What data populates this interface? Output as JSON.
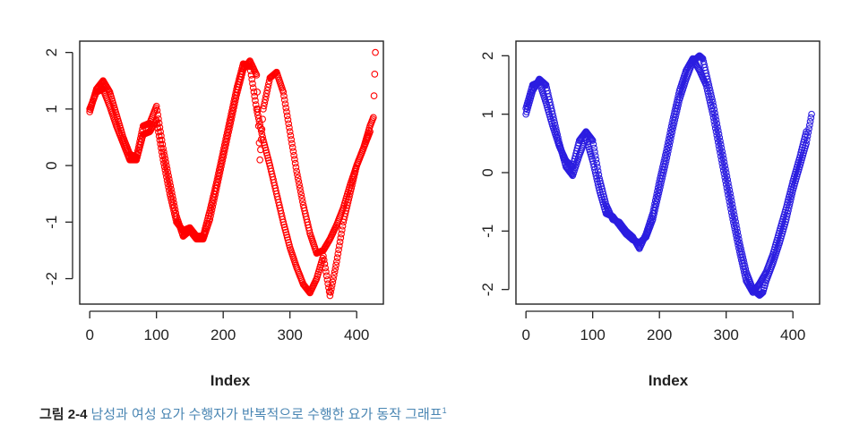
{
  "caption": {
    "label": "그림 2-4",
    "text": "남성과 여성 요가 수행자가 반복적으로 수행한 요가 동작 그래프",
    "footnote": "1"
  },
  "chart_data": [
    {
      "type": "scatter",
      "xlabel": "Index",
      "ylabel": "",
      "xlim": [
        -15,
        440
      ],
      "ylim": [
        -2.45,
        2.2
      ],
      "xticks": [
        0,
        100,
        200,
        300,
        400
      ],
      "yticks": [
        -2,
        -1,
        0,
        1,
        2
      ],
      "marker": "open-circle",
      "color": "#ff0000",
      "series": [
        {
          "x": [
            0,
            10,
            20,
            30,
            40,
            50,
            60,
            70,
            80,
            90,
            100,
            110,
            120,
            130,
            140,
            150,
            160,
            170,
            180,
            190,
            200,
            210,
            220,
            230,
            240,
            250,
            255,
            260,
            270,
            280,
            290,
            300,
            310,
            320,
            330,
            340,
            350,
            360,
            370,
            380,
            390,
            400,
            410,
            420,
            425,
            428
          ],
          "y": [
            0.95,
            1.35,
            1.5,
            1.3,
            0.9,
            0.5,
            0.2,
            0.15,
            0.7,
            0.75,
            1.05,
            0.3,
            -0.3,
            -0.9,
            -1.25,
            -1.15,
            -1.3,
            -1.3,
            -0.95,
            -0.4,
            0.15,
            0.7,
            1.25,
            1.7,
            1.85,
            1.6,
            0.1,
            1.0,
            1.55,
            1.65,
            1.3,
            0.6,
            -0.1,
            -0.7,
            -1.2,
            -1.55,
            -1.5,
            -1.3,
            -1.05,
            -0.75,
            -0.35,
            0.0,
            0.3,
            0.7,
            0.85,
            2.0
          ]
        },
        {
          "x": [
            0,
            10,
            20,
            30,
            40,
            50,
            60,
            70,
            80,
            90,
            100,
            110,
            120,
            130,
            140,
            150,
            160,
            170,
            180,
            190,
            200,
            210,
            220,
            230,
            240,
            250,
            260,
            270,
            280,
            290,
            300,
            310,
            320,
            330,
            340,
            350,
            360,
            370,
            380,
            390,
            400,
            410,
            420
          ],
          "y": [
            1.0,
            1.3,
            1.35,
            1.05,
            0.7,
            0.4,
            0.1,
            0.1,
            0.55,
            0.6,
            0.8,
            0.1,
            -0.5,
            -1.0,
            -1.15,
            -1.1,
            -1.25,
            -1.25,
            -0.8,
            -0.3,
            0.25,
            0.8,
            1.35,
            1.8,
            1.75,
            1.0,
            0.45,
            0.0,
            -0.5,
            -1.0,
            -1.45,
            -1.8,
            -2.1,
            -2.25,
            -2.0,
            -1.6,
            -2.3,
            -1.7,
            -1.0,
            -0.5,
            0.0,
            0.3,
            0.6
          ]
        }
      ]
    },
    {
      "type": "scatter",
      "xlabel": "Index",
      "ylabel": "",
      "xlim": [
        -15,
        440
      ],
      "ylim": [
        -2.25,
        2.25
      ],
      "xticks": [
        0,
        100,
        200,
        300,
        400
      ],
      "yticks": [
        -2,
        -1,
        0,
        1,
        2
      ],
      "marker": "open-circle",
      "color": "#2b1de0",
      "series": [
        {
          "x": [
            0,
            10,
            20,
            30,
            40,
            50,
            60,
            70,
            80,
            90,
            100,
            110,
            120,
            130,
            140,
            150,
            160,
            170,
            180,
            190,
            200,
            210,
            220,
            230,
            240,
            250,
            260,
            265,
            270,
            280,
            290,
            300,
            310,
            320,
            330,
            340,
            350,
            355,
            360,
            370,
            380,
            390,
            400,
            410,
            420,
            428
          ],
          "y": [
            1.0,
            1.4,
            1.6,
            1.5,
            1.0,
            0.5,
            0.1,
            -0.05,
            0.3,
            0.6,
            0.2,
            -0.3,
            -0.7,
            -0.75,
            -0.9,
            -1.05,
            -1.15,
            -1.2,
            -1.1,
            -0.8,
            -0.3,
            0.2,
            0.75,
            1.25,
            1.6,
            1.9,
            2.0,
            1.95,
            1.7,
            1.2,
            0.6,
            0.0,
            -0.6,
            -1.2,
            -1.7,
            -2.0,
            -2.1,
            -2.05,
            -1.85,
            -1.55,
            -1.2,
            -0.8,
            -0.3,
            0.1,
            0.5,
            1.0
          ]
        },
        {
          "x": [
            0,
            10,
            20,
            30,
            40,
            50,
            60,
            70,
            80,
            90,
            100,
            110,
            120,
            130,
            140,
            150,
            160,
            170,
            180,
            190,
            200,
            210,
            220,
            230,
            240,
            250,
            260,
            270,
            280,
            290,
            300,
            310,
            320,
            330,
            340,
            350,
            360,
            370,
            380,
            390,
            400,
            410,
            420
          ],
          "y": [
            1.1,
            1.5,
            1.55,
            1.2,
            0.8,
            0.45,
            0.2,
            0.1,
            0.55,
            0.7,
            0.55,
            -0.1,
            -0.55,
            -0.8,
            -0.85,
            -1.0,
            -1.1,
            -1.3,
            -1.05,
            -0.7,
            -0.15,
            0.35,
            0.9,
            1.4,
            1.75,
            1.95,
            1.75,
            1.5,
            1.0,
            0.4,
            -0.2,
            -0.8,
            -1.35,
            -1.85,
            -2.05,
            -1.9,
            -1.7,
            -1.4,
            -1.0,
            -0.6,
            -0.15,
            0.25,
            0.7
          ]
        }
      ]
    }
  ]
}
